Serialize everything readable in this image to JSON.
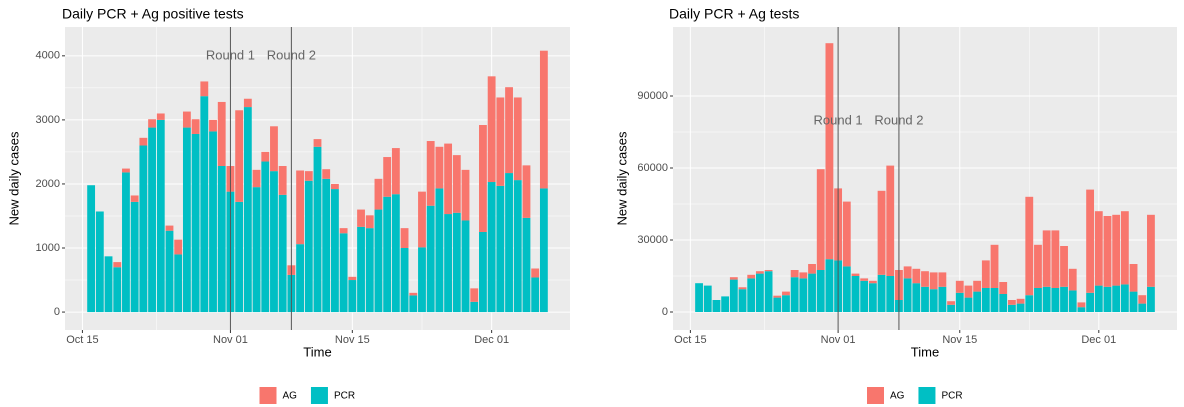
{
  "chart_data": [
    {
      "type": "bar",
      "stacked": true,
      "title": "Daily PCR + Ag positive tests",
      "x_label": "Time",
      "y_label": "New daily cases",
      "x": [
        "Oct 16",
        "Oct 17",
        "Oct 18",
        "Oct 19",
        "Oct 20",
        "Oct 21",
        "Oct 22",
        "Oct 23",
        "Oct 24",
        "Oct 25",
        "Oct 26",
        "Oct 27",
        "Oct 28",
        "Oct 29",
        "Oct 30",
        "Oct 31",
        "Nov 01",
        "Nov 02",
        "Nov 03",
        "Nov 04",
        "Nov 05",
        "Nov 06",
        "Nov 07",
        "Nov 08",
        "Nov 09",
        "Nov 10",
        "Nov 11",
        "Nov 12",
        "Nov 13",
        "Nov 14",
        "Nov 15",
        "Nov 16",
        "Nov 17",
        "Nov 18",
        "Nov 19",
        "Nov 20",
        "Nov 21",
        "Nov 22",
        "Nov 23",
        "Nov 24",
        "Nov 25",
        "Nov 26",
        "Nov 27",
        "Nov 28",
        "Nov 29",
        "Nov 30",
        "Dec 01",
        "Dec 02",
        "Dec 03",
        "Dec 04",
        "Dec 05",
        "Dec 06",
        "Dec 07"
      ],
      "series": [
        {
          "name": "AG",
          "color": "#f8766d",
          "values": [
            0,
            0,
            0,
            80,
            60,
            100,
            120,
            130,
            100,
            80,
            230,
            250,
            230,
            230,
            180,
            1000,
            400,
            1430,
            130,
            270,
            150,
            700,
            450,
            150,
            1150,
            150,
            120,
            150,
            80,
            80,
            50,
            270,
            200,
            480,
            620,
            720,
            310,
            40,
            870,
            1010,
            650,
            1100,
            900,
            790,
            210,
            1670,
            1650,
            1380,
            1340,
            1290,
            820,
            140,
            2150
          ]
        },
        {
          "name": "PCR",
          "color": "#00bfc4",
          "values": [
            1980,
            1570,
            870,
            700,
            2180,
            1720,
            2600,
            2880,
            3000,
            1270,
            900,
            2880,
            2780,
            3370,
            2820,
            2280,
            1880,
            1720,
            3200,
            1950,
            2350,
            2200,
            1830,
            580,
            1060,
            2050,
            2580,
            2080,
            1920,
            1230,
            500,
            1330,
            1310,
            1600,
            1800,
            1840,
            1000,
            260,
            1010,
            1660,
            1930,
            1530,
            1550,
            1430,
            160,
            1250,
            2030,
            1970,
            2170,
            2060,
            1470,
            540,
            1930
          ]
        }
      ],
      "xlim": [
        "Oct 13",
        "Dec 10"
      ],
      "xticks": [
        "Oct 15",
        "Nov 01",
        "Nov 15",
        "Dec 01"
      ],
      "ylim": [
        -280,
        4450
      ],
      "yticks": [
        0,
        1000,
        2000,
        3000,
        4000
      ],
      "grid": true,
      "legend": "bottom",
      "vlines": [
        "Nov 01",
        "Nov 08"
      ],
      "annotations": [
        {
          "text": "Round 1",
          "x": "Nov 01",
          "y": 4000
        },
        {
          "text": "Round 2",
          "x": "Nov 08",
          "y": 4000
        }
      ]
    },
    {
      "type": "bar",
      "stacked": true,
      "title": "Daily PCR + Ag tests",
      "x_label": "Time",
      "y_label": "New daily cases",
      "x": [
        "Oct 16",
        "Oct 17",
        "Oct 18",
        "Oct 19",
        "Oct 20",
        "Oct 21",
        "Oct 22",
        "Oct 23",
        "Oct 24",
        "Oct 25",
        "Oct 26",
        "Oct 27",
        "Oct 28",
        "Oct 29",
        "Oct 30",
        "Oct 31",
        "Nov 01",
        "Nov 02",
        "Nov 03",
        "Nov 04",
        "Nov 05",
        "Nov 06",
        "Nov 07",
        "Nov 08",
        "Nov 09",
        "Nov 10",
        "Nov 11",
        "Nov 12",
        "Nov 13",
        "Nov 14",
        "Nov 15",
        "Nov 16",
        "Nov 17",
        "Nov 18",
        "Nov 19",
        "Nov 20",
        "Nov 21",
        "Nov 22",
        "Nov 23",
        "Nov 24",
        "Nov 25",
        "Nov 26",
        "Nov 27",
        "Nov 28",
        "Nov 29",
        "Nov 30",
        "Dec 01",
        "Dec 02",
        "Dec 03",
        "Dec 04",
        "Dec 05",
        "Dec 06",
        "Dec 07"
      ],
      "series": [
        {
          "name": "AG",
          "color": "#f8766d",
          "values": [
            0,
            0,
            0,
            0,
            1000,
            800,
            1500,
            1000,
            500,
            800,
            1500,
            3000,
            2500,
            4000,
            42000,
            90000,
            30000,
            27000,
            1000,
            1000,
            1000,
            35000,
            46000,
            12500,
            5000,
            6000,
            6500,
            7000,
            6000,
            1500,
            5000,
            5000,
            4500,
            11500,
            18000,
            5000,
            2000,
            2000,
            41000,
            18000,
            23500,
            24000,
            17000,
            9000,
            2000,
            43000,
            31000,
            29500,
            29500,
            30500,
            11500,
            3500,
            30000
          ]
        },
        {
          "name": "PCR",
          "color": "#00bfc4",
          "values": [
            12000,
            11000,
            5000,
            6500,
            13500,
            9500,
            14000,
            16000,
            17000,
            6000,
            7000,
            14500,
            14000,
            16000,
            17500,
            22000,
            21500,
            19000,
            15000,
            13000,
            12000,
            15500,
            15000,
            5000,
            14000,
            12000,
            10500,
            9500,
            10500,
            3000,
            8000,
            6000,
            8500,
            10000,
            10000,
            7500,
            3000,
            3500,
            7000,
            10000,
            10500,
            10000,
            10500,
            9000,
            2000,
            8000,
            11000,
            10500,
            11000,
            11500,
            8500,
            3500,
            10500
          ]
        }
      ],
      "xlim": [
        "Oct 13",
        "Dec 10"
      ],
      "xticks": [
        "Oct 15",
        "Nov 01",
        "Nov 15",
        "Dec 01"
      ],
      "ylim": [
        -7500,
        118750
      ],
      "yticks": [
        0,
        30000,
        60000,
        90000
      ],
      "grid": true,
      "legend": "bottom",
      "vlines": [
        "Nov 01",
        "Nov 08"
      ],
      "annotations": [
        {
          "text": "Round 1",
          "x": "Nov 01",
          "y": 79500
        },
        {
          "text": "Round 2",
          "x": "Nov 08",
          "y": 79500
        }
      ]
    }
  ]
}
